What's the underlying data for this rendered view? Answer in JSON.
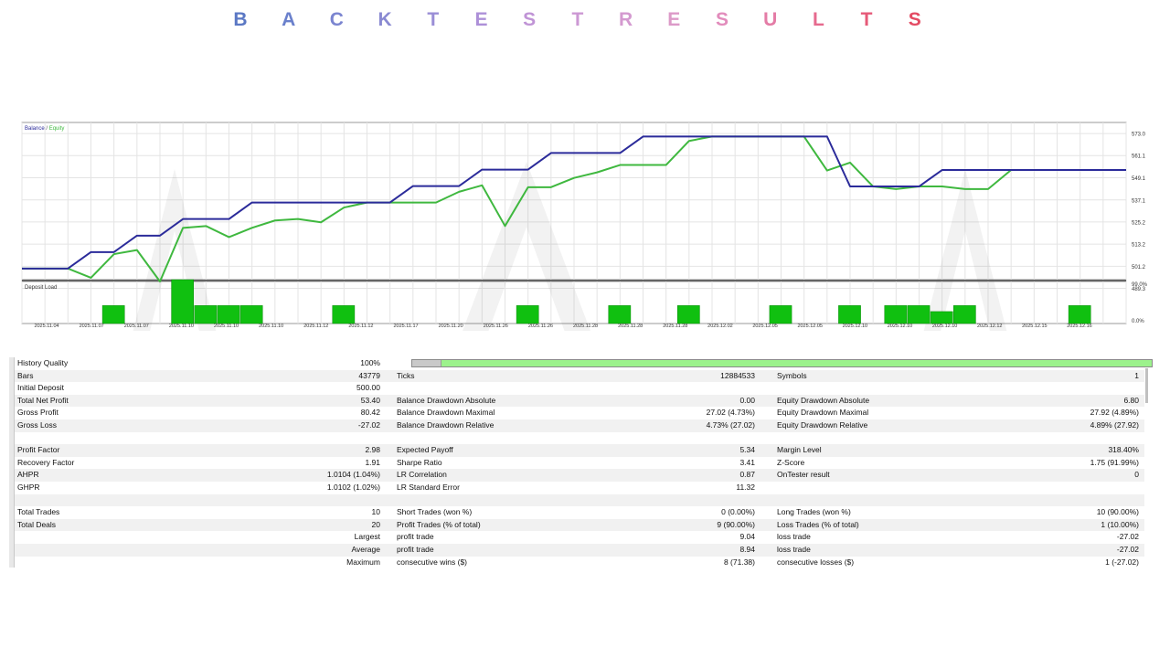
{
  "page_title_letters": [
    "B",
    "A",
    "C",
    "K",
    "T",
    "E",
    "S",
    "T",
    "R",
    "E",
    "S",
    "U",
    "L",
    "T",
    "S"
  ],
  "title_colors": [
    "#5b78c4",
    "#6a80cc",
    "#7b85d0",
    "#8a8ad2",
    "#9a8ed6",
    "#ad90d8",
    "#c094d6",
    "#cc98d4",
    "#d49ad0",
    "#dc9ac8",
    "#e28cbc",
    "#e47ca6",
    "#e66a8e",
    "#e65a78",
    "#e44b63"
  ],
  "watermark_text": "VOFOREX",
  "chart_data": [
    {
      "type": "line",
      "legend": [
        "Balance",
        "Equity"
      ],
      "legend_separator": " / ",
      "legend_position": "top-left",
      "grid": true,
      "ylim": [
        494,
        579
      ],
      "y_ticks": [
        "573.0",
        "561.1",
        "549.1",
        "537.1",
        "525.2",
        "513.2",
        "501.2",
        "489.3"
      ],
      "y_tick_values": [
        573.0,
        561.1,
        549.1,
        537.1,
        525.2,
        513.2,
        501.2,
        489.3
      ],
      "series": [
        {
          "name": "Balance",
          "color": "#2b2b9a",
          "x": [
            0,
            2,
            3,
            4,
            5,
            6,
            7,
            8,
            9,
            10,
            11,
            12,
            13,
            14,
            15,
            16,
            17,
            18,
            19,
            20,
            21,
            22,
            23,
            24,
            25,
            26,
            27,
            28,
            29,
            30,
            31,
            32,
            33,
            34,
            35,
            36,
            37,
            38,
            39,
            40,
            41,
            42,
            43,
            44,
            45,
            46,
            47,
            48
          ],
          "values": [
            500.0,
            500.0,
            508.9,
            508.9,
            517.8,
            517.8,
            526.8,
            526.8,
            526.8,
            535.7,
            535.7,
            535.7,
            535.7,
            535.7,
            535.7,
            535.7,
            544.6,
            544.6,
            544.6,
            553.5,
            553.5,
            553.5,
            562.5,
            562.5,
            562.5,
            562.5,
            571.4,
            571.4,
            571.4,
            571.4,
            571.4,
            571.4,
            571.4,
            571.4,
            571.4,
            544.4,
            544.4,
            544.4,
            544.4,
            553.3,
            553.3,
            553.3,
            553.3,
            553.3,
            553.3,
            553.3,
            553.3,
            553.3
          ]
        },
        {
          "name": "Equity",
          "color": "#3fb83f",
          "x": [
            0,
            2,
            3,
            4,
            5,
            6,
            7,
            8,
            9,
            10,
            11,
            12,
            13,
            14,
            15,
            16,
            17,
            18,
            19,
            20,
            21,
            22,
            23,
            24,
            25,
            26,
            27,
            28,
            29,
            30,
            31,
            32,
            33,
            34,
            35,
            36,
            37,
            38,
            39,
            40,
            41,
            42,
            43,
            44,
            45,
            46,
            47,
            48
          ],
          "values": [
            500.0,
            500.0,
            495.0,
            507.8,
            510.0,
            493.0,
            522.0,
            523.0,
            517.0,
            522.0,
            526.0,
            526.8,
            525.0,
            533.0,
            535.7,
            535.7,
            535.7,
            535.7,
            541.5,
            545.0,
            523.0,
            544.0,
            544.0,
            549.0,
            552.0,
            556.0,
            556.0,
            556.0,
            569.0,
            571.4,
            571.4,
            571.4,
            571.4,
            571.4,
            553.0,
            557.3,
            544.4,
            543.0,
            544.4,
            544.4,
            543.0,
            543.0,
            553.3,
            553.3,
            553.3,
            553.3,
            553.3,
            553.3
          ]
        }
      ]
    },
    {
      "type": "bar",
      "title": "Deposit Load",
      "y_ticks": [
        "99.0%",
        "0.0%"
      ],
      "ylim": [
        0,
        99
      ],
      "x": [
        4,
        7,
        8,
        9,
        10,
        14,
        22,
        26,
        29,
        33,
        36,
        38,
        39,
        40,
        41,
        46
      ],
      "values": [
        9,
        22,
        9,
        9,
        9,
        9,
        9,
        9,
        9,
        9,
        9,
        9,
        9,
        6,
        9,
        9
      ]
    }
  ],
  "x_axis_dates": [
    "2025.11.04",
    "2025.11.07",
    "2025.11.07",
    "2025.11.10",
    "2025.11.10",
    "2025.11.10",
    "2025.11.12",
    "2025.11.12",
    "2025.11.17",
    "2025.11.20",
    "2025.11.26",
    "2025.11.26",
    "2025.11.28",
    "2025.11.28",
    "2025.11.28",
    "2025.12.02",
    "2025.12.05",
    "2025.12.05",
    "2025.12.10",
    "2025.12.10",
    "2025.12.10",
    "2025.12.12",
    "2025.12.15",
    "2025.12.16"
  ],
  "stats": {
    "quality_label": "History Quality",
    "quality_value": "100%",
    "quality_fraction": 1.0,
    "rows": [
      {
        "shade": true,
        "a": "Bars",
        "b": "43779",
        "c": "Ticks",
        "d": "12884533",
        "e": "Symbols",
        "f": "1"
      },
      {
        "shade": false,
        "a": "Initial Deposit",
        "b": "500.00",
        "c": "",
        "d": "",
        "e": "",
        "f": ""
      },
      {
        "shade": true,
        "a": "Total Net Profit",
        "b": "53.40",
        "c": "Balance Drawdown Absolute",
        "d": "0.00",
        "e": "Equity Drawdown Absolute",
        "f": "6.80"
      },
      {
        "shade": false,
        "a": "Gross Profit",
        "b": "80.42",
        "c": "Balance Drawdown Maximal",
        "d": "27.02 (4.73%)",
        "e": "Equity Drawdown Maximal",
        "f": "27.92 (4.89%)"
      },
      {
        "shade": true,
        "a": "Gross Loss",
        "b": "-27.02",
        "c": "Balance Drawdown Relative",
        "d": "4.73% (27.02)",
        "e": "Equity Drawdown Relative",
        "f": "4.89% (27.92)"
      },
      {
        "shade": false,
        "a": "",
        "b": "",
        "c": "",
        "d": "",
        "e": "",
        "f": ""
      },
      {
        "shade": true,
        "a": "Profit Factor",
        "b": "2.98",
        "c": "Expected Payoff",
        "d": "5.34",
        "e": "Margin Level",
        "f": "318.40%"
      },
      {
        "shade": false,
        "a": "Recovery Factor",
        "b": "1.91",
        "c": "Sharpe Ratio",
        "d": "3.41",
        "e": "Z-Score",
        "f": "1.75 (91.99%)"
      },
      {
        "shade": true,
        "a": "AHPR",
        "b": "1.0104 (1.04%)",
        "c": "LR Correlation",
        "d": "0.87",
        "e": "OnTester result",
        "f": "0"
      },
      {
        "shade": false,
        "a": "GHPR",
        "b": "1.0102 (1.02%)",
        "c": "LR Standard Error",
        "d": "11.32",
        "e": "",
        "f": ""
      },
      {
        "shade": true,
        "a": "",
        "b": "",
        "c": "",
        "d": "",
        "e": "",
        "f": ""
      },
      {
        "shade": false,
        "a": "Total Trades",
        "b": "10",
        "c": "Short Trades (won %)",
        "d": "0 (0.00%)",
        "e": "Long Trades (won %)",
        "f": "10 (90.00%)"
      },
      {
        "shade": true,
        "a": "Total Deals",
        "b": "20",
        "c": "Profit Trades (% of total)",
        "d": "9 (90.00%)",
        "e": "Loss Trades (% of total)",
        "f": "1 (10.00%)"
      },
      {
        "shade": false,
        "a": "",
        "b": "Largest",
        "c": "profit trade",
        "d": "9.04",
        "e": "loss trade",
        "f": "-27.02"
      },
      {
        "shade": true,
        "a": "",
        "b": "Average",
        "c": "profit trade",
        "d": "8.94",
        "e": "loss trade",
        "f": "-27.02"
      },
      {
        "shade": false,
        "a": "",
        "b": "Maximum",
        "c": "consecutive wins ($)",
        "d": "8 (71.38)",
        "e": "consecutive losses ($)",
        "f": "1 (-27.02)"
      }
    ]
  }
}
